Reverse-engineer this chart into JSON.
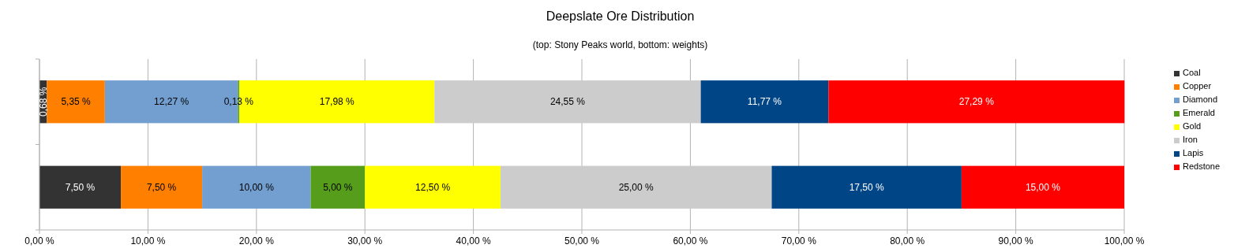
{
  "chart_data": {
    "type": "bar",
    "orientation": "horizontal",
    "stacked": true,
    "title": "Deepslate Ore Distribution",
    "subtitle": "(top: Stony Peaks world, bottom: weights)",
    "categories": [
      null,
      null
    ],
    "series": [
      {
        "name": "Coal",
        "color": "#333333",
        "values": [
          0.68,
          7.5
        ],
        "value_labels": [
          "0,68 %",
          "7,50 %"
        ]
      },
      {
        "name": "Copper",
        "color": "#ff8000",
        "values": [
          5.35,
          7.5
        ],
        "value_labels": [
          "5,35 %",
          "7,50 %"
        ]
      },
      {
        "name": "Diamond",
        "color": "#729fcf",
        "values": [
          12.27,
          10
        ],
        "value_labels": [
          "12,27 %",
          "10,00 %"
        ]
      },
      {
        "name": "Emerald",
        "color": "#579d1c",
        "values": [
          0.13,
          5
        ],
        "value_labels": [
          "0,13 %",
          "5,00 %"
        ]
      },
      {
        "name": "Gold",
        "color": "#ffff00",
        "values": [
          17.98,
          12.5
        ],
        "value_labels": [
          "17,98 %",
          "12,50 %"
        ]
      },
      {
        "name": "Iron",
        "color": "#cccccc",
        "values": [
          24.55,
          25
        ],
        "value_labels": [
          "24,55 %",
          "25,00 %"
        ]
      },
      {
        "name": "Lapis",
        "color": "#004586",
        "values": [
          11.77,
          17.5
        ],
        "value_labels": [
          "11,77 %",
          "17,50 %"
        ]
      },
      {
        "name": "Redstone",
        "color": "#ff0000",
        "values": [
          27.29,
          15
        ],
        "value_labels": [
          "27,29 %",
          "15,00 %"
        ]
      }
    ],
    "xlim": [
      0,
      100
    ],
    "xticks": [
      {
        "value": 0,
        "label": "0,00 %"
      },
      {
        "value": 10,
        "label": "10,00 %"
      },
      {
        "value": 20,
        "label": "20,00 %"
      },
      {
        "value": 30,
        "label": "30,00 %"
      },
      {
        "value": 40,
        "label": "40,00 %"
      },
      {
        "value": 50,
        "label": "50,00 %"
      },
      {
        "value": 60,
        "label": "60,00 %"
      },
      {
        "value": 70,
        "label": "70,00 %"
      },
      {
        "value": 80,
        "label": "80,00 %"
      },
      {
        "value": 90,
        "label": "90,00 %"
      },
      {
        "value": 100,
        "label": "100,00 %"
      }
    ],
    "grid": "x",
    "legend": "right"
  }
}
